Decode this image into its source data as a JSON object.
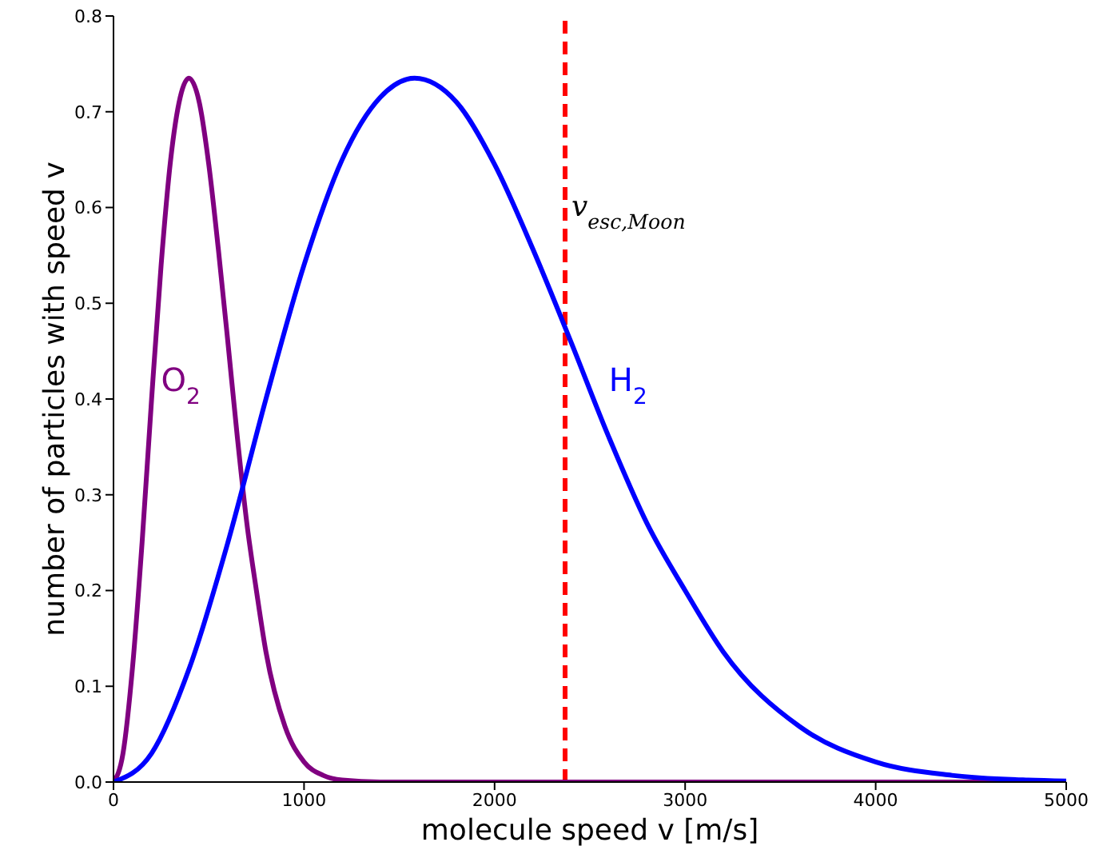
{
  "chart_data": {
    "type": "line",
    "xlabel": "molecule speed  v  [m/s]",
    "ylabel": "number of particles with speed v",
    "xlim": [
      0,
      5000
    ],
    "ylim": [
      0,
      0.8
    ],
    "xticks": [
      0,
      1000,
      2000,
      3000,
      4000,
      5000
    ],
    "yticks": [
      {
        "value": 0,
        "label": "0.0"
      },
      {
        "value": 0.1,
        "label": "0.1"
      },
      {
        "value": 0.2,
        "label": "0.2"
      },
      {
        "value": 0.3,
        "label": "0.3"
      },
      {
        "value": 0.4,
        "label": "0.4"
      },
      {
        "value": 0.5,
        "label": "0.5"
      },
      {
        "value": 0.6,
        "label": "0.6"
      },
      {
        "value": 0.7,
        "label": "0.7"
      },
      {
        "value": 0.8,
        "label": "0.8"
      }
    ],
    "grid": false,
    "legend": false,
    "marker": "none",
    "line_style": "solid",
    "series": [
      {
        "name": "O$_{2}$",
        "color": "#800080",
        "x": [
          0,
          50,
          100,
          150,
          200,
          250,
          300,
          350,
          395,
          450,
          500,
          550,
          600,
          650,
          700,
          750,
          800,
          900,
          1000,
          1100,
          1200,
          1400,
          5000
        ],
        "values": [
          0,
          0.03,
          0.12,
          0.25,
          0.4,
          0.54,
          0.65,
          0.715,
          0.735,
          0.71,
          0.645,
          0.557,
          0.46,
          0.36,
          0.27,
          0.2,
          0.136,
          0.058,
          0.021,
          0.007,
          0.002,
          0,
          0
        ]
      },
      {
        "name": "H$_{2}$",
        "color": "#0000ff",
        "x": [
          0,
          200,
          400,
          600,
          800,
          1000,
          1200,
          1400,
          1580,
          1800,
          2000,
          2200,
          2400,
          2600,
          2800,
          3000,
          3200,
          3600,
          4000,
          4400,
          4800,
          5000
        ],
        "values": [
          0,
          0.03,
          0.12,
          0.25,
          0.4,
          0.54,
          0.65,
          0.715,
          0.735,
          0.71,
          0.645,
          0.557,
          0.46,
          0.36,
          0.27,
          0.2,
          0.136,
          0.058,
          0.021,
          0.007,
          0.002,
          0.001
        ]
      }
    ],
    "ref_lines": [
      {
        "axis": "x",
        "value": 2370,
        "label": "v$_{esc,Moon}$",
        "color": "#ff0000",
        "line_style": "dashed"
      }
    ]
  }
}
